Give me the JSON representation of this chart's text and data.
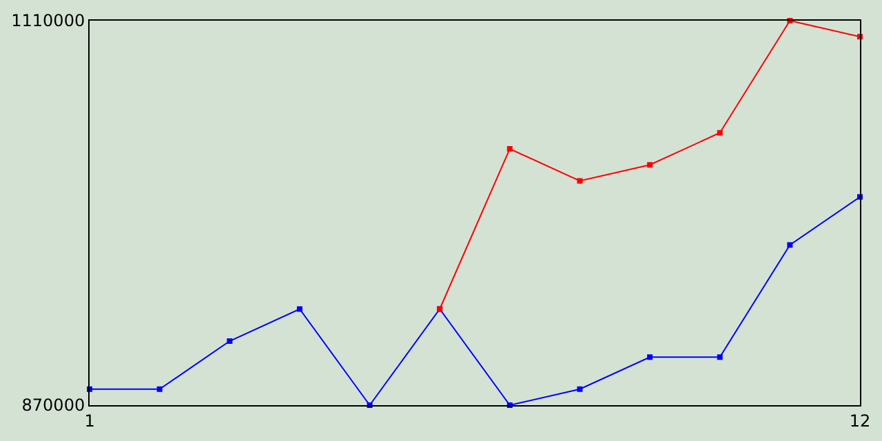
{
  "chart_data": {
    "type": "line",
    "x": [
      1,
      2,
      3,
      4,
      5,
      6,
      7,
      8,
      9,
      10,
      11,
      12
    ],
    "series": [
      {
        "color": "#0000ff",
        "values": [
          880000,
          880000,
          910000,
          930000,
          870000,
          930000,
          870000,
          880000,
          900000,
          900000,
          970000,
          1000000
        ]
      },
      {
        "color": "#ff0000",
        "values": [
          null,
          null,
          null,
          null,
          null,
          930000,
          1030000,
          1010000,
          1020000,
          1040000,
          1110000,
          1100000
        ]
      }
    ],
    "xlim": [
      1,
      12
    ],
    "xticks": [
      {
        "value": 1,
        "label": "1"
      },
      {
        "value": 12,
        "label": "12"
      }
    ],
    "ylim": [
      870000,
      1110000
    ],
    "yticks": [
      {
        "value": 870000,
        "label": "870000"
      },
      {
        "value": 1110000,
        "label": "1110000"
      }
    ],
    "marker": "square",
    "line_style": "solid"
  }
}
